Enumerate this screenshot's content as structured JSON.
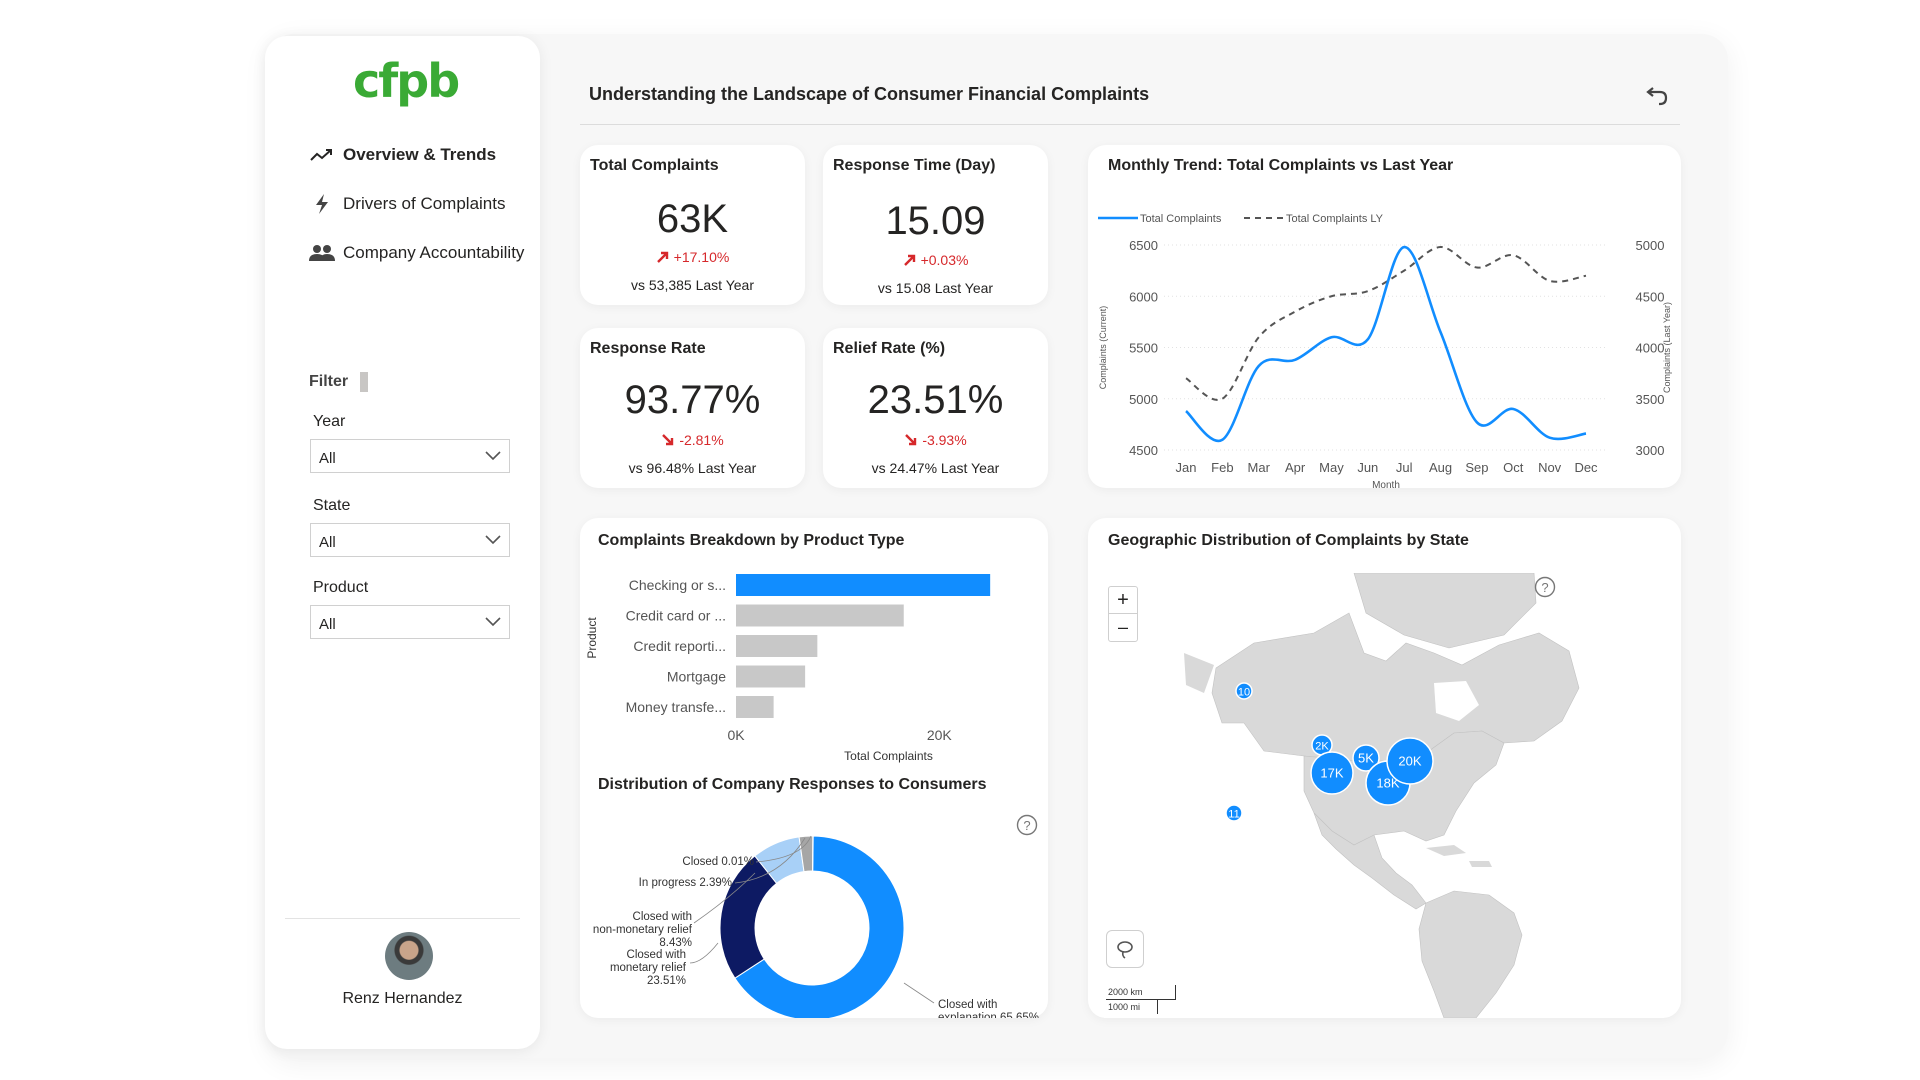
{
  "brand": {
    "logo_text": "cfpb",
    "logo_color": "#3aaa35"
  },
  "nav": [
    {
      "label": "Overview & Trends",
      "icon": "trend-icon",
      "active": true
    },
    {
      "label": "Drivers of Complaints",
      "icon": "lightning-icon",
      "active": false
    },
    {
      "label": "Company Accountability",
      "icon": "people-icon",
      "active": false
    }
  ],
  "filters": {
    "title": "Filter",
    "year": {
      "label": "Year",
      "value": "All"
    },
    "state": {
      "label": "State",
      "value": "All"
    },
    "product": {
      "label": "Product",
      "value": "All"
    }
  },
  "user": {
    "name": "Renz Hernandez"
  },
  "header": {
    "title": "Understanding the Landscape of Consumer Financial Complaints"
  },
  "kpis": [
    {
      "title": "Total Complaints",
      "value": "63K",
      "delta": "+17.10%",
      "direction": "up",
      "last_year": "vs 53,385 Last Year"
    },
    {
      "title": "Response Time (Day)",
      "value": "15.09",
      "delta": "+0.03%",
      "direction": "up",
      "last_year": "vs 15.08 Last Year"
    },
    {
      "title": "Response Rate",
      "value": "93.77%",
      "delta": "-2.81%",
      "direction": "down",
      "last_year": "vs 96.48% Last Year"
    },
    {
      "title": "Relief Rate (%)",
      "value": "23.51%",
      "delta": "-3.93%",
      "direction": "down",
      "last_year": "vs 24.47% Last Year"
    }
  ],
  "colors": {
    "accent": "#118dff",
    "dark_navy": "#0d1a63",
    "light_blue": "#a8d0f7",
    "grey": "#a6a6a6",
    "negative": "#d6282b",
    "bar_grey": "#c8c8c8"
  },
  "chart_data": [
    {
      "type": "line",
      "title": "Monthly Trend: Total Complaints vs Last Year",
      "xlabel": "Month",
      "ylabel": "Complaints (Current)",
      "y2label": "Complaints (Last Year)",
      "x": [
        "Jan",
        "Feb",
        "Mar",
        "Apr",
        "May",
        "Jun",
        "Jul",
        "Aug",
        "Sep",
        "Oct",
        "Nov",
        "Dec"
      ],
      "ylim": [
        4500,
        6500
      ],
      "y2lim": [
        3000,
        5000
      ],
      "yticks": [
        "6500",
        "6000",
        "5500",
        "5000",
        "4500"
      ],
      "y2ticks": [
        "5000",
        "4500",
        "4000",
        "3500",
        "3000"
      ],
      "legend_position": "top-left",
      "series": [
        {
          "name": "Total Complaints",
          "axis": "left",
          "style": "solid",
          "values": [
            4880,
            4600,
            5320,
            5380,
            5600,
            5580,
            6480,
            5650,
            4770,
            4900,
            4620,
            4660
          ]
        },
        {
          "name": "Total Complaints LY",
          "axis": "right",
          "style": "dashed",
          "values": [
            3700,
            3500,
            4100,
            4350,
            4500,
            4550,
            4750,
            4980,
            4780,
            4900,
            4650,
            4700
          ]
        }
      ]
    },
    {
      "type": "bar",
      "orientation": "horizontal",
      "title": "Complaints Breakdown by Product Type",
      "xlabel": "Total Complaints",
      "ylabel": "Product",
      "categories": [
        "Checking or s...",
        "Credit card or ...",
        "Credit reporti...",
        "Mortgage",
        "Money transfe..."
      ],
      "values": [
        25000,
        16500,
        8000,
        6800,
        3700
      ],
      "xlim": [
        0,
        30000
      ],
      "xticks": [
        {
          "label": "0K",
          "value": 0
        },
        {
          "label": "20K",
          "value": 20000
        }
      ]
    },
    {
      "type": "pie",
      "style": "donut",
      "title": "Distribution of Company Responses to Consumers",
      "slices": [
        {
          "label": "Closed with explanation",
          "pct_label": "65.65%",
          "value": 65.65,
          "color": "#118dff"
        },
        {
          "label": "Closed with monetary relief",
          "pct_label": "23.51%",
          "value": 23.51,
          "color": "#0d1a63"
        },
        {
          "label": "Closed with non-monetary relief",
          "pct_label": "8.43%",
          "value": 8.43,
          "color": "#a8d0f7"
        },
        {
          "label": "In progress",
          "pct_label": "2.39%",
          "value": 2.39,
          "color": "#a6a6a6"
        },
        {
          "label": "Closed",
          "pct_label": "0.01%",
          "value": 0.01,
          "color": "#6a6a6a"
        }
      ]
    }
  ],
  "map": {
    "title": "Geographic Distribution of Complaints by State",
    "zoom_in": "+",
    "zoom_out": "–",
    "scale_km": "2000 km",
    "scale_mi": "1000 mi",
    "bubbles": [
      {
        "label": "10"
      },
      {
        "label": "2K"
      },
      {
        "label": "17K"
      },
      {
        "label": "5K"
      },
      {
        "label": "18K"
      },
      {
        "label": "20K"
      },
      {
        "label": "11"
      }
    ]
  }
}
